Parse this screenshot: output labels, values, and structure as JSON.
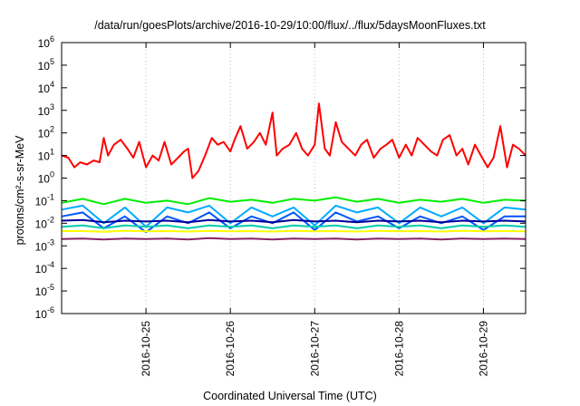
{
  "chart_data": {
    "type": "line",
    "title": "/data/run/goesPlots/archive/2016-10-29/10:00/flux/../flux/5daysMoonFluxes.txt",
    "xlabel": "Coordinated Universal Time (UTC)",
    "ylabel": "protons/cm²-s-sr-MeV",
    "yscale": "log",
    "ylim": [
      1e-06,
      1000000.0
    ],
    "y_ticks": [
      {
        "value": 1e-06,
        "base": "10",
        "exp": "-6"
      },
      {
        "value": 1e-05,
        "base": "10",
        "exp": "-5"
      },
      {
        "value": 0.0001,
        "base": "10",
        "exp": "-4"
      },
      {
        "value": 0.001,
        "base": "10",
        "exp": "-3"
      },
      {
        "value": 0.01,
        "base": "10",
        "exp": "-2"
      },
      {
        "value": 0.1,
        "base": "10",
        "exp": "-1"
      },
      {
        "value": 1.0,
        "base": "10",
        "exp": "0"
      },
      {
        "value": 10.0,
        "base": "10",
        "exp": "1"
      },
      {
        "value": 100.0,
        "base": "10",
        "exp": "2"
      },
      {
        "value": 1000.0,
        "base": "10",
        "exp": "3"
      },
      {
        "value": 10000.0,
        "base": "10",
        "exp": "4"
      },
      {
        "value": 100000.0,
        "base": "10",
        "exp": "5"
      },
      {
        "value": 1000000.0,
        "base": "10",
        "exp": "6"
      }
    ],
    "xlim": [
      0,
      5.5
    ],
    "x_ticks": [
      {
        "value": 1,
        "label": "2016-10-25"
      },
      {
        "value": 2,
        "label": "2016-10-26"
      },
      {
        "value": 3,
        "label": "2016-10-27"
      },
      {
        "value": 4,
        "label": "2016-10-28"
      },
      {
        "value": 5,
        "label": "2016-10-29"
      }
    ],
    "grid": true,
    "series": [
      {
        "color": "#ff0000",
        "x": [
          0,
          0.08,
          0.15,
          0.22,
          0.3,
          0.38,
          0.45,
          0.5,
          0.55,
          0.62,
          0.7,
          0.78,
          0.85,
          0.92,
          1.0,
          1.08,
          1.15,
          1.22,
          1.3,
          1.38,
          1.45,
          1.5,
          1.55,
          1.62,
          1.7,
          1.78,
          1.85,
          1.92,
          2.0,
          2.05,
          2.12,
          2.2,
          2.28,
          2.35,
          2.42,
          2.5,
          2.55,
          2.62,
          2.7,
          2.78,
          2.85,
          2.92,
          3.0,
          3.05,
          3.12,
          3.18,
          3.25,
          3.32,
          3.4,
          3.48,
          3.55,
          3.62,
          3.7,
          3.78,
          3.85,
          3.92,
          4.0,
          4.08,
          4.15,
          4.22,
          4.3,
          4.38,
          4.45,
          4.52,
          4.6,
          4.68,
          4.75,
          4.82,
          4.9,
          4.97,
          5.05,
          5.12,
          5.2,
          5.28,
          5.35,
          5.42,
          5.5
        ],
        "values": [
          10,
          8,
          3,
          5,
          4,
          6,
          5,
          60,
          10,
          30,
          50,
          20,
          8,
          40,
          3,
          10,
          6,
          40,
          4,
          8,
          15,
          20,
          1,
          2,
          10,
          60,
          30,
          40,
          15,
          50,
          200,
          20,
          40,
          100,
          30,
          800,
          10,
          20,
          30,
          100,
          20,
          10,
          30,
          2000,
          20,
          10,
          300,
          40,
          20,
          10,
          30,
          50,
          8,
          20,
          30,
          50,
          8,
          30,
          10,
          60,
          30,
          15,
          10,
          50,
          80,
          10,
          20,
          4,
          30,
          10,
          3,
          8,
          200,
          3,
          30,
          20,
          10
        ]
      },
      {
        "color": "#00ee00",
        "x": [
          0,
          0.25,
          0.5,
          0.75,
          1.0,
          1.25,
          1.5,
          1.75,
          2.0,
          2.25,
          2.5,
          2.75,
          3.0,
          3.25,
          3.5,
          3.75,
          4.0,
          4.25,
          4.5,
          4.75,
          5.0,
          5.25,
          5.5
        ],
        "values": [
          0.08,
          0.12,
          0.07,
          0.12,
          0.08,
          0.1,
          0.07,
          0.13,
          0.09,
          0.11,
          0.08,
          0.12,
          0.1,
          0.14,
          0.09,
          0.12,
          0.08,
          0.11,
          0.09,
          0.12,
          0.08,
          0.11,
          0.1
        ]
      },
      {
        "color": "#00aaff",
        "x": [
          0,
          0.25,
          0.5,
          0.75,
          1.0,
          1.25,
          1.5,
          1.75,
          2.0,
          2.25,
          2.5,
          2.75,
          3.0,
          3.25,
          3.5,
          3.75,
          4.0,
          4.25,
          4.5,
          4.75,
          5.0,
          5.25,
          5.5
        ],
        "values": [
          0.04,
          0.06,
          0.01,
          0.05,
          0.007,
          0.05,
          0.03,
          0.06,
          0.01,
          0.05,
          0.02,
          0.05,
          0.008,
          0.06,
          0.03,
          0.05,
          0.01,
          0.05,
          0.02,
          0.05,
          0.01,
          0.05,
          0.04
        ]
      },
      {
        "color": "#0055ff",
        "x": [
          0,
          0.25,
          0.5,
          0.75,
          1.0,
          1.25,
          1.5,
          1.75,
          2.0,
          2.25,
          2.5,
          2.75,
          3.0,
          3.25,
          3.5,
          3.75,
          4.0,
          4.25,
          4.5,
          4.75,
          5.0,
          5.25,
          5.5
        ],
        "values": [
          0.02,
          0.03,
          0.006,
          0.02,
          0.004,
          0.02,
          0.01,
          0.03,
          0.006,
          0.02,
          0.01,
          0.03,
          0.005,
          0.03,
          0.012,
          0.02,
          0.006,
          0.02,
          0.01,
          0.02,
          0.005,
          0.02,
          0.02
        ]
      },
      {
        "color": "#000099",
        "x": [
          0,
          0.25,
          0.5,
          0.75,
          1.0,
          1.25,
          1.5,
          1.75,
          2.0,
          2.25,
          2.5,
          2.75,
          3.0,
          3.25,
          3.5,
          3.75,
          4.0,
          4.25,
          4.5,
          4.75,
          5.0,
          5.25,
          5.5
        ],
        "values": [
          0.013,
          0.014,
          0.011,
          0.013,
          0.012,
          0.013,
          0.011,
          0.014,
          0.012,
          0.013,
          0.011,
          0.014,
          0.012,
          0.013,
          0.011,
          0.013,
          0.012,
          0.013,
          0.011,
          0.013,
          0.012,
          0.013,
          0.012
        ]
      },
      {
        "color": "#00ccaa",
        "x": [
          0,
          0.25,
          0.5,
          0.75,
          1.0,
          1.25,
          1.5,
          1.75,
          2.0,
          2.25,
          2.5,
          2.75,
          3.0,
          3.25,
          3.5,
          3.75,
          4.0,
          4.25,
          4.5,
          4.75,
          5.0,
          5.25,
          5.5
        ],
        "values": [
          0.007,
          0.008,
          0.006,
          0.008,
          0.007,
          0.008,
          0.006,
          0.008,
          0.007,
          0.008,
          0.006,
          0.008,
          0.007,
          0.008,
          0.006,
          0.008,
          0.007,
          0.008,
          0.006,
          0.008,
          0.007,
          0.008,
          0.007
        ]
      },
      {
        "color": "#ffff00",
        "x": [
          0,
          0.25,
          0.5,
          0.75,
          1.0,
          1.25,
          1.5,
          1.75,
          2.0,
          2.25,
          2.5,
          2.75,
          3.0,
          3.25,
          3.5,
          3.75,
          4.0,
          4.25,
          4.5,
          4.75,
          5.0,
          5.25,
          5.5
        ],
        "values": [
          0.0045,
          0.0045,
          0.0042,
          0.0046,
          0.0044,
          0.0045,
          0.0043,
          0.0046,
          0.0044,
          0.0045,
          0.0043,
          0.0046,
          0.0044,
          0.0045,
          0.0043,
          0.0046,
          0.0044,
          0.0045,
          0.0043,
          0.0046,
          0.0044,
          0.0045,
          0.0044
        ]
      },
      {
        "color": "#882266",
        "x": [
          0,
          0.25,
          0.5,
          0.75,
          1.0,
          1.25,
          1.5,
          1.75,
          2.0,
          2.25,
          2.5,
          2.75,
          3.0,
          3.25,
          3.5,
          3.75,
          4.0,
          4.25,
          4.5,
          4.75,
          5.0,
          5.25,
          5.5
        ],
        "values": [
          0.002,
          0.0021,
          0.0019,
          0.0021,
          0.002,
          0.0021,
          0.0019,
          0.0022,
          0.002,
          0.0021,
          0.0019,
          0.0021,
          0.002,
          0.0021,
          0.0019,
          0.0021,
          0.002,
          0.0021,
          0.0019,
          0.0021,
          0.002,
          0.0021,
          0.002
        ]
      }
    ]
  }
}
